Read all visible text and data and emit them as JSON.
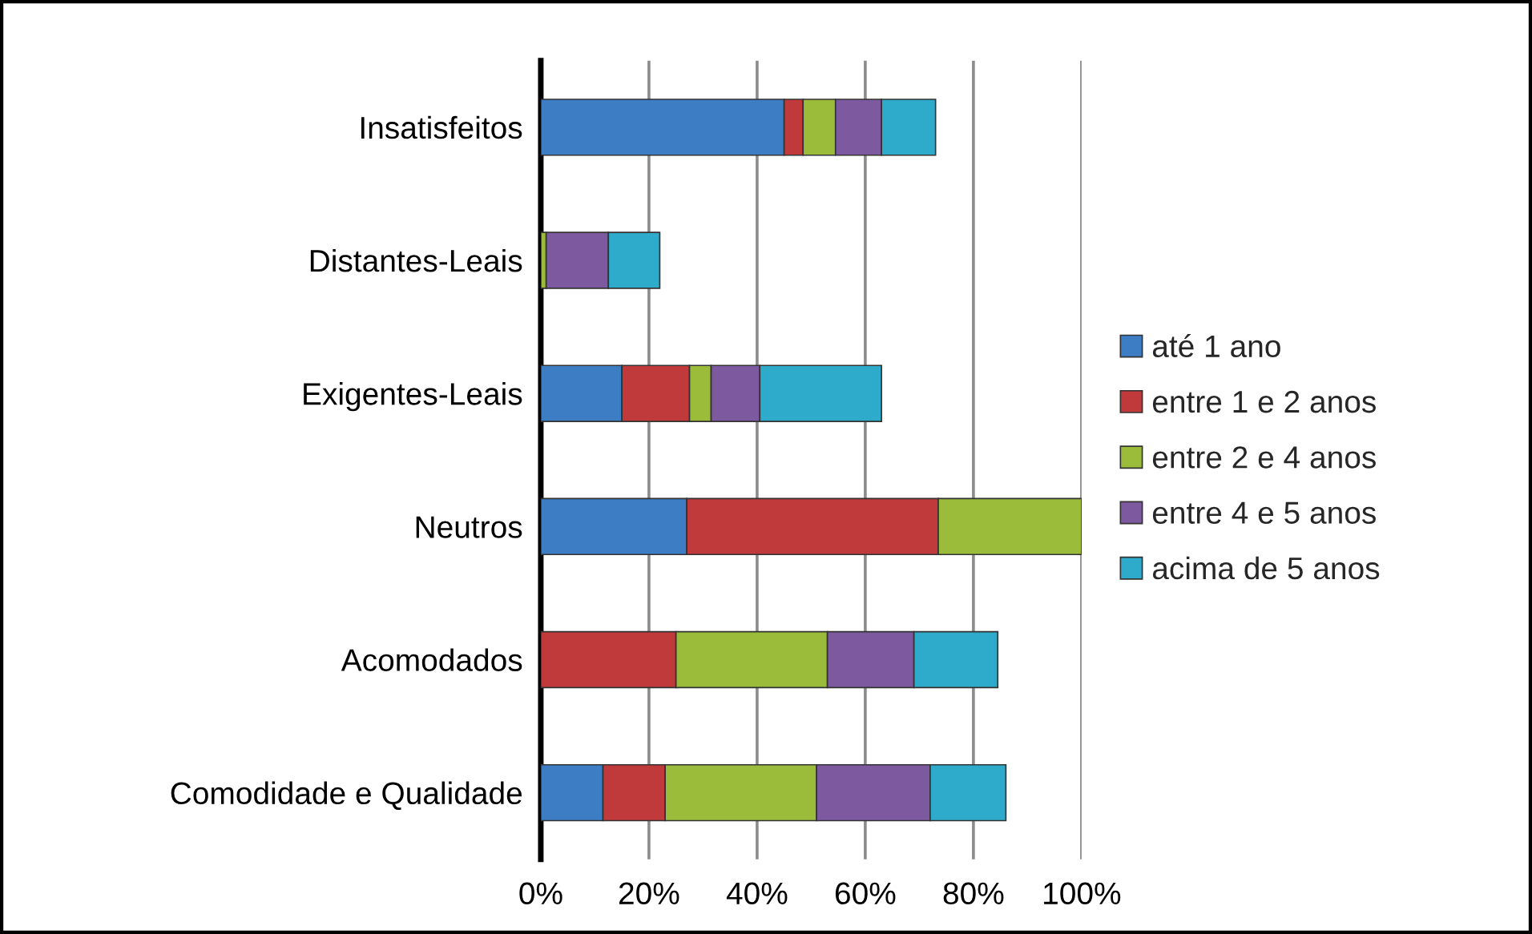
{
  "chart_data": {
    "type": "bar",
    "orientation": "horizontal",
    "stacked": true,
    "categories": [
      "Insatisfeitos",
      "Distantes-Leais",
      "Exigentes-Leais",
      "Neutros",
      "Acomodados",
      "Comodidade e Qualidade"
    ],
    "series": [
      {
        "name": "até 1 ano",
        "color": "#3c7dc4",
        "values": [
          45,
          0,
          15,
          27,
          0,
          11.5
        ]
      },
      {
        "name": "entre 1 e 2 anos",
        "color": "#c0393b",
        "values": [
          3.5,
          0,
          12.5,
          46.5,
          25,
          11.5
        ]
      },
      {
        "name": "entre 2 e 4 anos",
        "color": "#9bbb3b",
        "values": [
          6,
          1,
          4,
          26.5,
          28,
          28
        ]
      },
      {
        "name": "entre 4 e 5 anos",
        "color": "#7d5a9f",
        "values": [
          8.5,
          11.5,
          9,
          0,
          16,
          21
        ]
      },
      {
        "name": "acima de 5 anos",
        "color": "#2eaacb",
        "values": [
          10,
          9.5,
          22.5,
          0,
          15.5,
          14
        ]
      }
    ],
    "xlim": [
      0,
      100
    ],
    "xticks": [
      {
        "value": 0,
        "label": "0%"
      },
      {
        "value": 20,
        "label": "20%"
      },
      {
        "value": 40,
        "label": "40%"
      },
      {
        "value": 60,
        "label": "60%"
      },
      {
        "value": 80,
        "label": "80%"
      },
      {
        "value": 100,
        "label": "100%"
      }
    ],
    "grid": "x",
    "legend": "right"
  }
}
